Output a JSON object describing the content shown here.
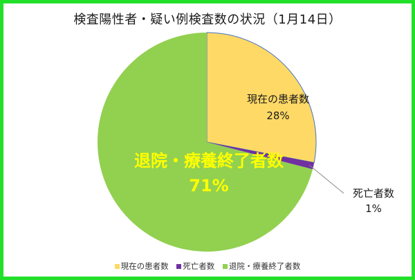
{
  "chart": {
    "title": "検査陽性者・疑い例検査数の状況（1月14日）"
  },
  "chart_data": {
    "type": "pie",
    "title": "検査陽性者・疑い例検査数の状況（1月14日）",
    "categories": [
      "現在の患者数",
      "死亡者数",
      "退院・療養終了者数"
    ],
    "values": [
      28,
      1,
      71
    ],
    "labels": [
      "28%",
      "1%",
      "71%"
    ],
    "colors": [
      "#ffd966",
      "#7030a0",
      "#92d050"
    ],
    "legend_position": "bottom",
    "start_angle_deg": 0,
    "direction": "clockwise"
  },
  "colors": {
    "frame": "#22e029",
    "slice_outline": "#4472c4",
    "big_label": "#ffff00",
    "small_label": "#1a1a1a"
  }
}
